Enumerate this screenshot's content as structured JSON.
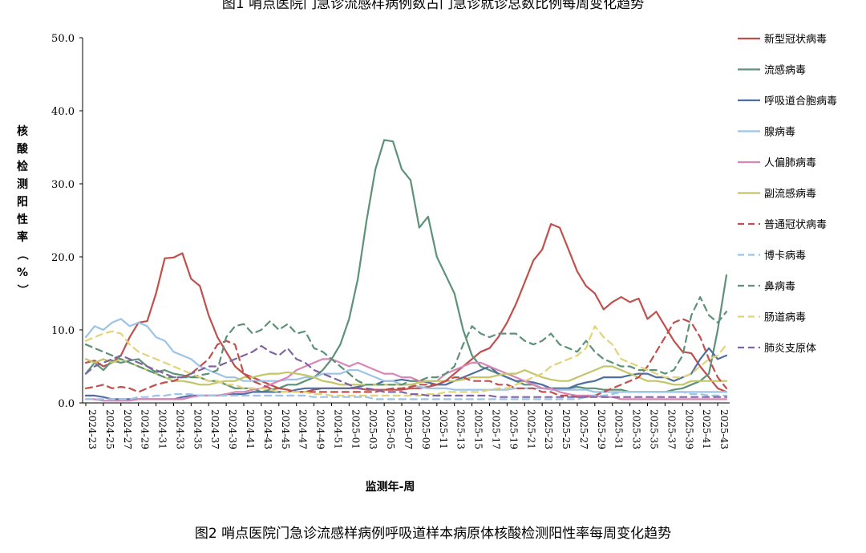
{
  "top_title": "图1 哨点医院门急诊流感样病例数占门急诊就诊总数比例每周变化趋势",
  "caption": "图2 哨点医院门急诊流感样病例呼吸道样本病原体核酸检测阳性率每周变化趋势",
  "chart_data": {
    "type": "line",
    "xlabel": "监测年-周",
    "ylabel": "核酸检测阳性率（%）",
    "ylim": [
      0,
      50
    ],
    "yticks": [
      "0.0",
      "10.0",
      "20.0",
      "30.0",
      "40.0",
      "50.0"
    ],
    "x_tick_labels": [
      "2024-23",
      "2024-25",
      "2024-27",
      "2024-29",
      "2024-31",
      "2024-33",
      "2024-35",
      "2024-37",
      "2024-39",
      "2024-41",
      "2024-43",
      "2024-45",
      "2024-47",
      "2024-49",
      "2024-51",
      "2025-01",
      "2025-03",
      "2025-05",
      "2025-07",
      "2025-09",
      "2025-11",
      "2025-13",
      "2025-15",
      "2025-17",
      "2025-19",
      "2025-21",
      "2025-23",
      "2025-25",
      "2025-27",
      "2025-29",
      "2025-31",
      "2025-33",
      "2025-35",
      "2025-37",
      "2025-39",
      "2025-41",
      "2025-43"
    ],
    "num_weeks": 74,
    "grid": false,
    "legend_position": "right",
    "series": [
      {
        "name": "新型冠状病毒",
        "color": "#c0504d",
        "dash": "solid",
        "values": [
          5.5,
          5.8,
          5.0,
          5.5,
          6.5,
          9.0,
          11.0,
          11.2,
          15.0,
          19.8,
          19.9,
          20.5,
          17.0,
          16.0,
          12.0,
          9.0,
          7.0,
          5.0,
          4.0,
          3.5,
          3.0,
          2.5,
          2.0,
          1.8,
          1.5,
          1.5,
          1.8,
          2.0,
          2.0,
          2.0,
          2.0,
          2.0,
          1.8,
          1.8,
          1.8,
          1.8,
          1.8,
          2.0,
          2.0,
          2.2,
          2.5,
          3.0,
          4.0,
          5.0,
          6.0,
          7.0,
          7.5,
          9.0,
          11.0,
          13.5,
          16.5,
          19.5,
          21.0,
          24.5,
          24.0,
          21.0,
          18.0,
          16.0,
          15.0,
          12.8,
          13.8,
          14.5,
          13.8,
          14.3,
          11.5,
          12.5,
          10.5,
          8.5,
          7.0,
          6.8,
          5.0,
          3.5,
          2.0,
          1.5
        ]
      },
      {
        "name": "流感病毒",
        "color": "#5d9178",
        "dash": "solid",
        "values": [
          4.0,
          5.5,
          4.5,
          5.8,
          5.5,
          5.8,
          6.0,
          5.0,
          4.2,
          4.5,
          4.0,
          3.8,
          3.5,
          3.5,
          3.0,
          3.0,
          2.5,
          2.0,
          2.0,
          2.0,
          1.5,
          1.8,
          2.0,
          2.5,
          2.5,
          3.0,
          3.5,
          4.5,
          6.0,
          8.0,
          11.5,
          17.0,
          25.0,
          32.0,
          36.0,
          35.8,
          32.0,
          30.5,
          24.0,
          25.5,
          20.0,
          17.5,
          15.0,
          10.0,
          6.5,
          5.0,
          4.5,
          4.0,
          3.5,
          3.0,
          2.5,
          2.5,
          2.0,
          2.0,
          2.0,
          2.0,
          2.2,
          2.0,
          2.0,
          1.8,
          1.8,
          1.8,
          1.5,
          1.5,
          1.5,
          1.5,
          1.5,
          1.8,
          2.0,
          2.5,
          3.0,
          4.0,
          10.0,
          17.5
        ]
      },
      {
        "name": "呼吸道合胞病毒",
        "color": "#4f6fa0",
        "dash": "solid",
        "values": [
          1.0,
          1.0,
          0.8,
          0.5,
          0.5,
          0.5,
          0.5,
          0.5,
          0.5,
          0.5,
          0.5,
          0.8,
          1.0,
          1.0,
          1.0,
          1.0,
          1.2,
          1.2,
          1.2,
          1.5,
          1.5,
          1.5,
          1.5,
          1.5,
          1.8,
          2.0,
          2.0,
          2.0,
          2.0,
          2.0,
          2.0,
          2.2,
          2.5,
          2.5,
          3.0,
          3.0,
          3.2,
          3.0,
          3.0,
          2.8,
          2.5,
          2.5,
          3.0,
          3.5,
          4.0,
          4.5,
          5.0,
          4.0,
          3.5,
          3.0,
          3.0,
          2.8,
          2.5,
          2.0,
          2.0,
          2.0,
          2.5,
          2.8,
          3.0,
          3.5,
          3.5,
          3.5,
          3.8,
          4.0,
          4.0,
          3.5,
          3.5,
          3.0,
          3.5,
          4.0,
          6.0,
          7.5,
          6.0,
          6.5
        ]
      },
      {
        "name": "腺病毒",
        "color": "#9dc3e6",
        "dash": "solid",
        "values": [
          9.0,
          10.5,
          10.0,
          11.0,
          11.5,
          10.5,
          11.0,
          10.5,
          9.0,
          8.5,
          7.0,
          6.5,
          6.0,
          5.0,
          4.5,
          4.0,
          3.5,
          3.5,
          3.0,
          3.0,
          3.0,
          3.0,
          3.0,
          3.2,
          3.2,
          3.5,
          3.5,
          4.0,
          4.0,
          4.0,
          4.5,
          4.5,
          4.0,
          3.5,
          3.0,
          3.0,
          2.5,
          2.5,
          2.2,
          2.0,
          2.0,
          2.0,
          1.8,
          1.8,
          1.8,
          1.8,
          1.8,
          1.8,
          1.8,
          2.0,
          2.0,
          2.0,
          2.0,
          1.8,
          1.8,
          1.8,
          1.8,
          1.8,
          1.5,
          1.5,
          1.5,
          1.5,
          1.5,
          1.5,
          1.5,
          1.5,
          1.5,
          1.5,
          1.5,
          1.5,
          1.5,
          1.5,
          1.5,
          1.5
        ]
      },
      {
        "name": "人偏肺病毒",
        "color": "#d986b6",
        "dash": "solid",
        "values": [
          0.5,
          0.5,
          0.3,
          0.3,
          0.3,
          0.3,
          0.5,
          0.5,
          0.5,
          0.5,
          0.5,
          0.5,
          0.8,
          1.0,
          1.0,
          1.0,
          1.2,
          1.5,
          1.5,
          1.8,
          2.0,
          2.5,
          3.0,
          3.5,
          4.5,
          5.0,
          5.5,
          6.0,
          6.0,
          5.5,
          5.0,
          5.5,
          5.0,
          4.5,
          4.0,
          4.0,
          3.5,
          3.5,
          3.0,
          3.0,
          3.0,
          4.0,
          4.5,
          5.0,
          5.5,
          5.5,
          5.0,
          4.5,
          4.0,
          3.5,
          3.0,
          2.5,
          2.0,
          2.0,
          1.5,
          1.2,
          1.0,
          1.0,
          1.0,
          0.8,
          0.8,
          0.5,
          0.5,
          0.5,
          0.5,
          0.5,
          0.5,
          0.5,
          0.5,
          0.5,
          0.5,
          0.5,
          0.5,
          0.5
        ]
      },
      {
        "name": "副流感病毒",
        "color": "#c3c667",
        "dash": "solid",
        "values": [
          6.0,
          5.5,
          6.0,
          5.5,
          6.0,
          5.5,
          5.0,
          4.5,
          4.0,
          3.5,
          3.0,
          3.0,
          2.8,
          2.5,
          2.5,
          2.8,
          3.0,
          3.0,
          3.5,
          3.5,
          3.8,
          4.0,
          4.0,
          4.2,
          4.0,
          3.8,
          3.5,
          3.0,
          2.8,
          2.5,
          2.5,
          2.5,
          2.5,
          2.5,
          2.5,
          2.5,
          2.5,
          2.5,
          2.8,
          3.0,
          3.0,
          3.0,
          3.0,
          3.2,
          3.5,
          3.5,
          3.5,
          3.8,
          4.0,
          4.0,
          4.5,
          4.0,
          3.5,
          3.2,
          3.0,
          3.0,
          3.5,
          4.0,
          4.5,
          5.0,
          5.0,
          4.5,
          4.0,
          3.5,
          3.0,
          3.0,
          2.8,
          2.5,
          2.5,
          3.0,
          3.0,
          3.0,
          3.0,
          3.0
        ]
      },
      {
        "name": "普通冠状病毒",
        "color": "#c0504d",
        "dash": "dash",
        "values": [
          2.0,
          2.2,
          2.5,
          2.0,
          2.2,
          2.0,
          1.5,
          2.0,
          2.5,
          2.8,
          3.0,
          3.5,
          4.0,
          5.0,
          6.0,
          8.0,
          8.5,
          8.0,
          4.0,
          3.0,
          2.5,
          2.0,
          2.0,
          1.8,
          1.5,
          1.5,
          1.5,
          1.5,
          1.5,
          1.5,
          1.5,
          1.5,
          1.5,
          1.5,
          1.8,
          2.0,
          2.0,
          2.2,
          2.5,
          2.5,
          2.5,
          3.0,
          3.5,
          3.5,
          3.0,
          3.0,
          3.0,
          2.5,
          2.5,
          2.0,
          2.0,
          2.0,
          1.5,
          1.5,
          1.0,
          1.0,
          0.8,
          0.8,
          1.0,
          1.5,
          2.0,
          2.5,
          3.0,
          3.5,
          5.0,
          7.0,
          9.0,
          11.0,
          11.5,
          11.0,
          9.0,
          6.0,
          3.5,
          2.0
        ]
      },
      {
        "name": "博卡病毒",
        "color": "#9dc3e6",
        "dash": "dash",
        "values": [
          0.5,
          0.5,
          0.5,
          0.5,
          0.5,
          0.5,
          0.8,
          0.8,
          1.0,
          1.0,
          1.2,
          1.2,
          1.2,
          1.0,
          1.0,
          1.0,
          1.0,
          1.0,
          1.0,
          1.0,
          1.0,
          1.0,
          1.0,
          1.0,
          1.0,
          1.0,
          0.8,
          0.8,
          0.8,
          0.8,
          0.8,
          0.8,
          0.8,
          0.5,
          0.5,
          0.5,
          0.5,
          0.5,
          0.5,
          0.5,
          0.5,
          0.5,
          0.5,
          0.5,
          0.5,
          0.5,
          0.5,
          0.5,
          0.5,
          0.5,
          0.5,
          0.5,
          0.5,
          0.5,
          0.5,
          0.5,
          0.5,
          0.8,
          1.0,
          1.0,
          1.2,
          1.5,
          1.5,
          1.5,
          1.5,
          1.5,
          1.5,
          1.5,
          1.5,
          1.2,
          1.2,
          1.0,
          1.0,
          1.0
        ]
      },
      {
        "name": "鼻病毒",
        "color": "#5d9178",
        "dash": "dash",
        "values": [
          8.0,
          7.5,
          7.0,
          6.5,
          6.0,
          5.5,
          5.0,
          4.5,
          4.0,
          3.5,
          3.5,
          3.5,
          3.5,
          3.8,
          4.0,
          4.5,
          9.0,
          10.5,
          10.8,
          9.5,
          10.0,
          11.2,
          10.0,
          10.8,
          9.5,
          9.8,
          7.5,
          7.0,
          6.0,
          5.0,
          4.0,
          3.0,
          2.5,
          2.5,
          2.5,
          2.5,
          2.5,
          3.0,
          3.0,
          3.5,
          3.5,
          4.0,
          5.0,
          8.0,
          10.5,
          9.5,
          9.0,
          9.5,
          9.5,
          9.5,
          8.5,
          8.0,
          8.5,
          9.5,
          8.0,
          7.5,
          7.0,
          8.5,
          7.0,
          6.0,
          5.5,
          5.0,
          5.0,
          4.5,
          4.5,
          4.5,
          4.0,
          4.5,
          6.5,
          12.0,
          14.5,
          12.0,
          11.0,
          12.5
        ]
      },
      {
        "name": "肠道病毒",
        "color": "#e2d378",
        "dash": "dash",
        "values": [
          8.5,
          9.0,
          9.5,
          9.8,
          9.5,
          8.0,
          7.0,
          6.5,
          6.0,
          5.5,
          5.0,
          4.5,
          4.0,
          3.5,
          3.0,
          3.0,
          2.5,
          2.5,
          2.0,
          2.0,
          2.0,
          1.8,
          1.5,
          1.5,
          1.5,
          1.5,
          1.2,
          1.2,
          1.0,
          1.0,
          1.0,
          1.0,
          1.0,
          1.0,
          1.0,
          1.0,
          1.0,
          1.0,
          1.0,
          1.2,
          1.2,
          1.5,
          1.5,
          1.5,
          1.5,
          1.5,
          1.8,
          2.0,
          2.0,
          2.5,
          3.0,
          3.5,
          4.0,
          5.0,
          5.5,
          6.0,
          6.5,
          7.5,
          10.5,
          9.0,
          8.0,
          6.0,
          5.5,
          5.0,
          4.5,
          4.0,
          3.5,
          3.5,
          3.5,
          4.0,
          5.0,
          6.0,
          6.5,
          8.0
        ]
      },
      {
        "name": "肺炎支原体",
        "color": "#8064a2",
        "dash": "dash",
        "values": [
          4.0,
          5.0,
          5.5,
          6.0,
          6.5,
          6.0,
          5.5,
          5.0,
          4.5,
          4.0,
          3.5,
          3.5,
          4.0,
          4.5,
          5.0,
          5.0,
          5.5,
          6.0,
          6.5,
          7.0,
          7.8,
          7.0,
          6.5,
          7.5,
          6.0,
          5.5,
          4.5,
          4.0,
          3.5,
          3.0,
          2.5,
          2.0,
          2.0,
          1.8,
          1.5,
          1.5,
          1.5,
          1.2,
          1.2,
          1.0,
          1.0,
          1.0,
          1.0,
          1.0,
          1.0,
          1.0,
          1.0,
          0.8,
          0.8,
          0.8,
          0.8,
          0.8,
          0.8,
          0.8,
          0.8,
          0.8,
          0.8,
          0.8,
          0.8,
          0.8,
          0.8,
          0.8,
          0.8,
          0.8,
          0.8,
          0.8,
          0.8,
          0.8,
          0.8,
          0.8,
          0.8,
          0.8,
          0.8,
          0.8
        ]
      }
    ]
  }
}
